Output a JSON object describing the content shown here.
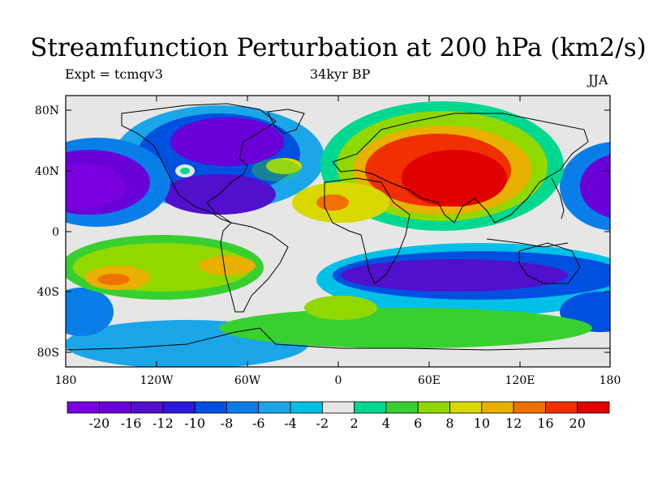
{
  "title": "Streamfunction Perturbation at 200 hPa (km2/s)",
  "subtitle_left": "Expt = tcmqv3",
  "subtitle_center": "34kyr BP",
  "subtitle_right": "JJA",
  "lat_ticks": [
    "80N",
    "40N",
    "0",
    "40S",
    "80S"
  ],
  "lon_ticks": [
    "180",
    "120W",
    "60W",
    "0",
    "60E",
    "120E",
    "180"
  ],
  "colorbar": {
    "colors": [
      "#7a00e0",
      "#6a00d8",
      "#5010cc",
      "#2b18d8",
      "#0050e0",
      "#0a7ee8",
      "#1aa6e8",
      "#00c0e8",
      "#e6e6e6",
      "#00d890",
      "#38d030",
      "#90d800",
      "#d8d800",
      "#e8b000",
      "#f07000",
      "#f03000",
      "#e00000"
    ],
    "labels": [
      "-20",
      "-16",
      "-12",
      "-10",
      "-8",
      "-6",
      "-4",
      "-2",
      "2",
      "4",
      "6",
      "8",
      "10",
      "12",
      "16",
      "20"
    ]
  },
  "colors": {
    "neutral": "#e6e6e6",
    "coastline": "#000000"
  }
}
